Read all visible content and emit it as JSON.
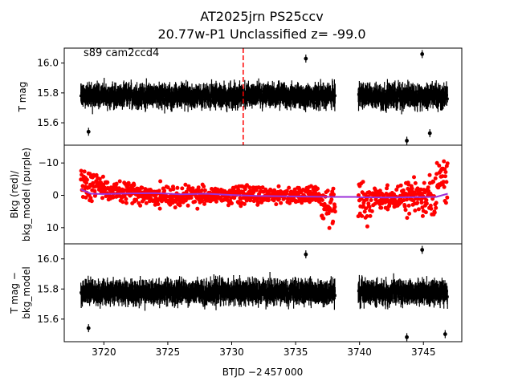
{
  "chart_data": {
    "type": "scatter",
    "title_line1": "AT2025jrn  PS25ccv",
    "title_line2": "20.77w-P1 Unclassified z= -99.0",
    "xlabel": "BTJD −2 457 000",
    "xlim": [
      3716.9,
      3748.0
    ],
    "xticks": [
      3720,
      3725,
      3730,
      3735,
      3740,
      3745
    ],
    "gap": [
      3738.1,
      3739.7
    ],
    "vline_x": 3730.9,
    "vline_color": "#ff0000",
    "panels": [
      {
        "id": "lightcurve",
        "ylabel": "T mag",
        "ylim": [
          16.1,
          15.45
        ],
        "yticks": [
          15.6,
          15.8,
          16.0
        ],
        "ytick_labels": [
          "15.6",
          "15.8",
          "16.0"
        ],
        "annotation": "s89 cam2ccd4",
        "series": [
          {
            "style": "errorbar",
            "color": "#000000",
            "center": 15.78,
            "spread": 0.065,
            "x_range": [
              3718.2,
              3738.1
            ],
            "x_range_2": [
              3739.9,
              3746.9
            ],
            "outliers": [
              [
                3718.8,
                15.54
              ],
              [
                3743.7,
                15.48
              ],
              [
                3745.5,
                15.53
              ],
              [
                3744.9,
                16.06
              ],
              [
                3735.8,
                16.03
              ]
            ]
          }
        ]
      },
      {
        "id": "background",
        "ylabel": "Bkg (red)/\nbkg_model (purple)",
        "ylim": [
          -15.5,
          15.0
        ],
        "yticks": [
          -10,
          0,
          10
        ],
        "ytick_labels": [
          "−10",
          "0",
          "10"
        ],
        "series": [
          {
            "name": "Bkg",
            "style": "points",
            "color": "#ff0000"
          },
          {
            "name": "bkg_model",
            "style": "line",
            "color": "#9b30d9",
            "x": [
              3718.2,
              3719,
              3720,
              3722,
              3724,
              3726,
              3728,
              3730,
              3732,
              3734,
              3736,
              3738.1,
              3739.7,
              3740,
              3742,
              3744,
              3746,
              3746.9
            ],
            "y": [
              -1.8,
              -0.5,
              -0.4,
              -0.6,
              -0.7,
              -0.3,
              -0.5,
              -0.1,
              0.2,
              0.3,
              0.4,
              0.5,
              0.5,
              0.6,
              0.7,
              0.6,
              0.5,
              -0.5
            ]
          }
        ]
      },
      {
        "id": "detrended",
        "ylabel": "T mag −\nbkg_model",
        "ylim": [
          16.1,
          15.45
        ],
        "yticks": [
          15.6,
          15.8,
          16.0
        ],
        "ytick_labels": [
          "15.6",
          "15.8",
          "16.0"
        ],
        "series": [
          {
            "style": "errorbar",
            "color": "#000000",
            "center": 15.78,
            "spread": 0.065,
            "outliers": [
              [
                3718.8,
                15.54
              ],
              [
                3743.7,
                15.48
              ],
              [
                3746.7,
                15.5
              ],
              [
                3735.8,
                16.03
              ],
              [
                3744.9,
                16.06
              ]
            ]
          }
        ]
      }
    ]
  }
}
